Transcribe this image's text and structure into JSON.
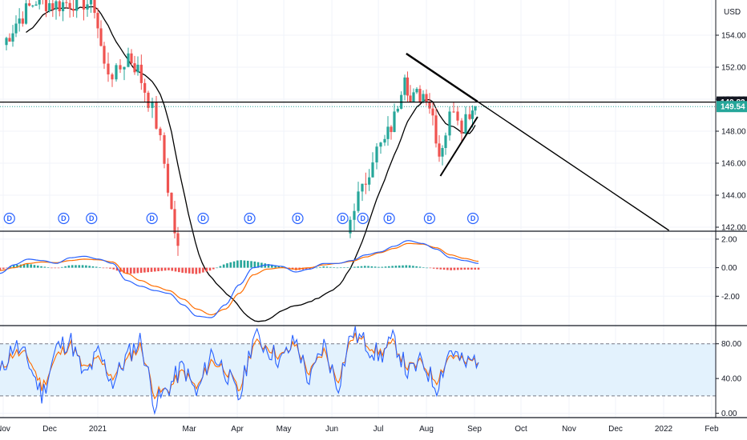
{
  "header": {
    "currency": "USD"
  },
  "colors": {
    "up": "#26a69a",
    "down": "#ef5350",
    "ma": "#000000",
    "trendline": "#000000",
    "macd_line": "#2962ff",
    "signal_line": "#ff6d00",
    "hist_up": "#26a69a",
    "hist_down": "#ef5350",
    "stoch_k": "#2962ff",
    "stoch_d": "#ff6d00",
    "stoch_band": "#e3f2fd",
    "grid": "#f0f3fa",
    "dividend": "#2962ff",
    "last_price_tag": "#26a69a",
    "resistance_tag": "#131722"
  },
  "chart_data": [
    {
      "type": "candlestick",
      "panel": "price",
      "y_axis_ticks": [
        "154.00",
        "152.00",
        "150.00",
        "148.00",
        "146.00",
        "144.00",
        "142.00"
      ],
      "y_axis_side": "right",
      "ylim": [
        141.8,
        156.2
      ],
      "price_tags": [
        {
          "label": "149.82",
          "value": 149.82,
          "kind": "resistance"
        },
        {
          "label": "149.54",
          "value": 149.54,
          "kind": "last"
        }
      ],
      "ohlc_sample": [
        {
          "date": "2020-11-09",
          "open": 155.6,
          "close": 156.1
        },
        {
          "date": "2020-11-20",
          "open": 155.8,
          "close": 156.3
        },
        {
          "date": "2021-01-15",
          "open": 153.5,
          "close": 152.6
        },
        {
          "date": "2021-02-12",
          "open": 149.6,
          "close": 148.4
        },
        {
          "date": "2021-03-01",
          "open": 142.5,
          "close": 141.9
        },
        {
          "date": "2021-06-25",
          "open": 143.2,
          "close": 145.4
        },
        {
          "date": "2021-07-19",
          "open": 151.2,
          "close": 152.6
        },
        {
          "date": "2021-08-10",
          "open": 147.6,
          "close": 146.0
        },
        {
          "date": "2021-09-02",
          "open": 149.2,
          "close": 149.54
        }
      ],
      "dividend_marker_label": "D",
      "dividend_dates": [
        "2020-11-05",
        "2020-12-10",
        "2020-12-28",
        "2021-02-05",
        "2021-03-10",
        "2021-04-09",
        "2021-05-10",
        "2021-06-08",
        "2021-06-21",
        "2021-07-08",
        "2021-08-03",
        "2021-08-31"
      ],
      "annotations": [
        {
          "kind": "horizontal_line",
          "value": 149.82
        },
        {
          "kind": "descending_trendline",
          "from": {
            "date": "2021-07-19",
            "value": 152.85
          },
          "through": {
            "date": "2021-09-03",
            "value": 149.85
          }
        },
        {
          "kind": "ascending_trendline",
          "from": {
            "date": "2021-08-10",
            "value": 145.2
          },
          "to": {
            "date": "2021-09-03",
            "value": 148.9
          }
        }
      ]
    },
    {
      "type": "line",
      "panel": "macd",
      "y_axis_ticks": [
        "2.00",
        "0.00",
        "-2.00"
      ],
      "ylim": [
        -4,
        2.5
      ],
      "series": [
        {
          "values": [
            -0.4,
            0.2,
            0.6,
            0.5,
            0.3,
            0.7,
            0.8,
            0.6,
            0.3,
            -0.9,
            -1.3,
            -1.6,
            -1.8,
            -2.6,
            -3.4,
            -3.5,
            -2.6,
            -1.2,
            0.0,
            0.2,
            0.1,
            -0.3,
            -0.1,
            0.3,
            0.3,
            0.5,
            0.9,
            1.1,
            1.5,
            1.9,
            1.7,
            1.3,
            0.7,
            0.5,
            0.3
          ]
        },
        {
          "values": [
            -0.2,
            0.0,
            0.3,
            0.4,
            0.35,
            0.5,
            0.6,
            0.55,
            0.4,
            -0.4,
            -0.9,
            -1.3,
            -1.6,
            -2.2,
            -2.9,
            -3.3,
            -2.9,
            -1.8,
            -0.5,
            -0.1,
            0.0,
            -0.1,
            0.0,
            0.2,
            0.3,
            0.45,
            0.75,
            1.05,
            1.35,
            1.7,
            1.65,
            1.4,
            0.9,
            0.65,
            0.45
          ]
        }
      ]
    },
    {
      "type": "line",
      "panel": "stochastic",
      "y_axis_ticks": [
        "80.00",
        "40.00",
        "0.00"
      ],
      "ylim": [
        -5,
        100
      ],
      "bands": [
        80,
        20
      ],
      "series": [
        {
          "values": [
            45,
            80,
            60,
            20,
            75,
            85,
            40,
            70,
            35,
            65,
            85,
            10,
            30,
            55,
            20,
            70,
            50,
            15,
            90,
            75,
            60,
            85,
            35,
            80,
            30,
            95,
            80,
            65,
            85,
            45,
            60,
            30,
            75,
            55,
            65
          ]
        },
        {
          "values": [
            50,
            70,
            65,
            30,
            65,
            80,
            50,
            62,
            42,
            60,
            78,
            22,
            28,
            48,
            28,
            60,
            52,
            25,
            80,
            78,
            65,
            80,
            45,
            72,
            38,
            88,
            82,
            70,
            80,
            52,
            58,
            38,
            68,
            58,
            62
          ]
        }
      ]
    }
  ],
  "x_axis": {
    "ticks": [
      {
        "label": "Nov",
        "date": "2020-11-01"
      },
      {
        "label": "Dec",
        "date": "2020-12-01"
      },
      {
        "label": "2021",
        "date": "2021-01-01"
      },
      {
        "label": "Mar",
        "date": "2021-03-01"
      },
      {
        "label": "Apr",
        "date": "2021-04-01"
      },
      {
        "label": "May",
        "date": "2021-05-01"
      },
      {
        "label": "Jun",
        "date": "2021-06-01"
      },
      {
        "label": "Jul",
        "date": "2021-07-01"
      },
      {
        "label": "Aug",
        "date": "2021-08-01"
      },
      {
        "label": "Sep",
        "date": "2021-09-01"
      },
      {
        "label": "Oct",
        "date": "2021-10-01"
      },
      {
        "label": "Nov",
        "date": "2021-11-01"
      },
      {
        "label": "Dec",
        "date": "2021-12-01"
      },
      {
        "label": "2022",
        "date": "2022-01-01"
      },
      {
        "label": "Feb",
        "date": "2022-02-01"
      }
    ]
  }
}
